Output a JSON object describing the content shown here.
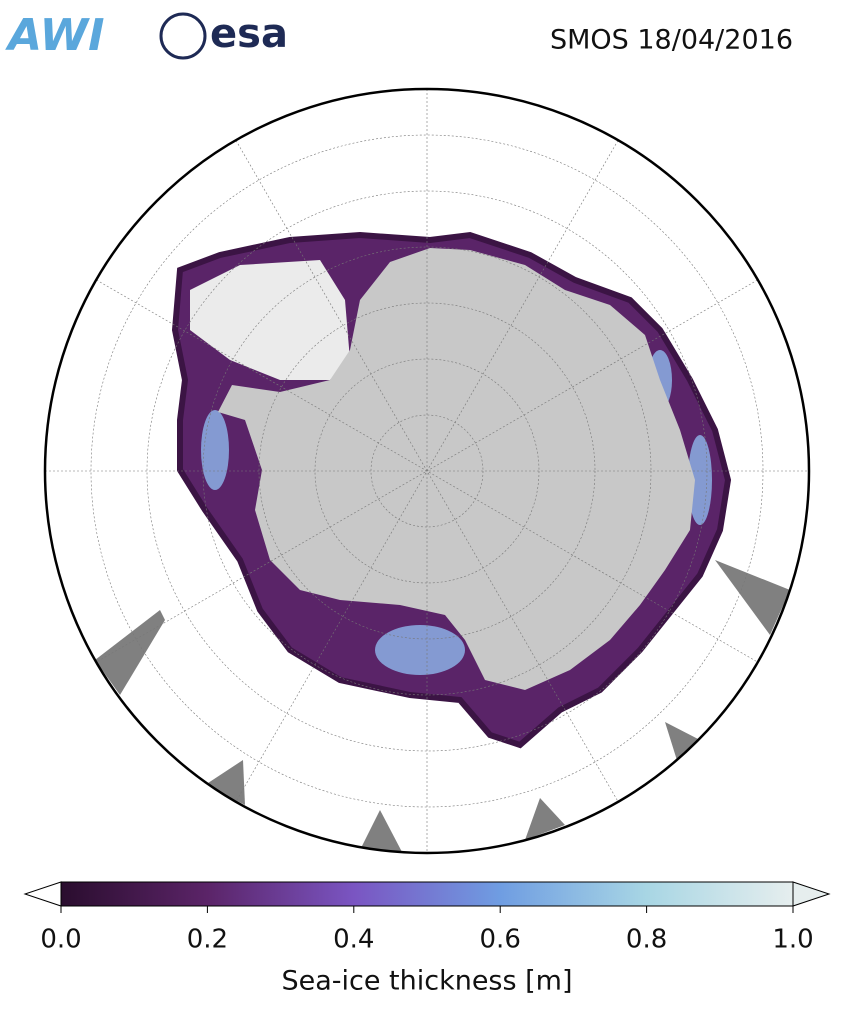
{
  "header": {
    "logos": [
      "AWI",
      "esa"
    ],
    "title": "SMOS 18/04/2016"
  },
  "colorbar": {
    "label": "Sea-ice thickness [m]",
    "range": [
      0,
      1
    ],
    "ticks": [
      {
        "value": 0,
        "label": "0.0"
      },
      0.2,
      0.4,
      0.6,
      0.8,
      {
        "value": 1,
        "label": "1.0"
      }
    ],
    "colors": [
      "#2a0d2e",
      "#5b2468",
      "#7a55c2",
      "#6f9de2",
      "#a8d6e4",
      "#e6eeee"
    ]
  }
}
